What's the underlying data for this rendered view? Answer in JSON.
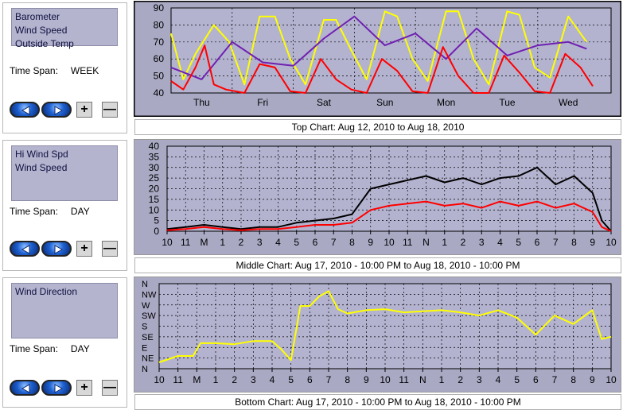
{
  "panels": [
    {
      "series": [
        "Barometer",
        "Wind Speed",
        "Outside Temp"
      ],
      "timespan_label": "Time Span:",
      "timespan_value": "WEEK"
    },
    {
      "series": [
        "Hi Wind Spd",
        "Wind Speed"
      ],
      "timespan_label": "Time Span:",
      "timespan_value": "DAY"
    },
    {
      "series": [
        "Wind Direction"
      ],
      "timespan_label": "Time Span:",
      "timespan_value": "DAY"
    }
  ],
  "controls": {
    "plus": "+",
    "minus": "—"
  },
  "captions": {
    "top": "Top Chart:  Aug 12, 2010  to  Aug 18, 2010",
    "middle": "Middle Chart:  Aug 17, 2010 - 10:00 PM  to  Aug 18, 2010 - 10:00 PM",
    "bottom": "Bottom Chart:  Aug 17, 2010 - 10:00 PM  to  Aug 18, 2010 - 10:00 PM"
  },
  "chart_data": [
    {
      "type": "line",
      "title": "",
      "x_categories": [
        "Thu",
        "Fri",
        "Sat",
        "Sun",
        "Mon",
        "Tue",
        "Wed"
      ],
      "y_ticks": [
        "40",
        "50",
        "60",
        "70",
        "80",
        "90"
      ],
      "ylim": [
        40,
        90
      ],
      "xlim_days": [
        0,
        7.2
      ],
      "grid": true,
      "series": [
        {
          "color": "#ffff00",
          "x": [
            0,
            0.2,
            0.4,
            0.7,
            0.95,
            1.2,
            1.45,
            1.7,
            1.95,
            2.2,
            2.5,
            2.7,
            2.95,
            3.2,
            3.5,
            3.7,
            3.95,
            4.2,
            4.5,
            4.7,
            4.95,
            5.2,
            5.5,
            5.7,
            5.95,
            6.2,
            6.5,
            6.8
          ],
          "y": [
            75,
            48,
            63,
            80,
            70,
            45,
            85,
            85,
            60,
            45,
            83,
            83,
            65,
            48,
            88,
            85,
            60,
            47,
            88,
            88,
            60,
            45,
            88,
            86,
            55,
            49,
            85,
            70
          ]
        },
        {
          "color": "#7020b0",
          "x": [
            0,
            0.5,
            1.0,
            1.5,
            2.0,
            2.5,
            3.0,
            3.5,
            4.0,
            4.5,
            5.0,
            5.5,
            6.0,
            6.5,
            6.8
          ],
          "y": [
            55,
            48,
            70,
            58,
            56,
            72,
            85,
            68,
            75,
            60,
            78,
            62,
            68,
            70,
            66
          ]
        },
        {
          "color": "#ff0000",
          "x": [
            0,
            0.2,
            0.4,
            0.55,
            0.7,
            0.9,
            1.2,
            1.45,
            1.7,
            1.95,
            2.2,
            2.45,
            2.7,
            2.95,
            3.2,
            3.45,
            3.7,
            3.95,
            4.2,
            4.45,
            4.7,
            4.95,
            5.2,
            5.45,
            5.7,
            5.95,
            6.2,
            6.45,
            6.7,
            6.9
          ],
          "y": [
            47,
            42,
            55,
            68,
            45,
            42,
            40,
            57,
            55,
            41,
            40,
            60,
            48,
            42,
            40,
            60,
            53,
            41,
            40,
            67,
            50,
            40,
            40,
            62,
            52,
            41,
            40,
            63,
            55,
            44
          ]
        }
      ]
    },
    {
      "type": "line",
      "title": "",
      "x_ticks": [
        "10",
        "11",
        "M",
        "1",
        "2",
        "3",
        "4",
        "5",
        "6",
        "7",
        "8",
        "9",
        "10",
        "11",
        "N",
        "1",
        "2",
        "3",
        "4",
        "5",
        "6",
        "7",
        "8",
        "9",
        "10"
      ],
      "y_ticks": [
        "0",
        "5",
        "10",
        "15",
        "20",
        "25",
        "30",
        "35",
        "40"
      ],
      "ylim": [
        0,
        40
      ],
      "xlim": [
        0,
        24
      ],
      "grid": true,
      "series": [
        {
          "name": "Hi Wind Spd",
          "color": "#000000",
          "x": [
            0,
            1,
            2,
            3,
            4,
            5,
            6,
            7,
            8,
            9,
            10,
            11,
            12,
            13,
            14,
            15,
            16,
            17,
            18,
            19,
            20,
            21,
            22,
            23,
            23.5,
            24
          ],
          "y": [
            1,
            2,
            3,
            2,
            1,
            2,
            2,
            4,
            5,
            6,
            8,
            20,
            22,
            24,
            26,
            23,
            25,
            22,
            25,
            26,
            30,
            22,
            26,
            18,
            5,
            0
          ]
        },
        {
          "name": "Wind Speed",
          "color": "#ff0000",
          "x": [
            0,
            1,
            2,
            3,
            4,
            5,
            6,
            7,
            8,
            9,
            10,
            11,
            12,
            13,
            14,
            15,
            16,
            17,
            18,
            19,
            20,
            21,
            22,
            23,
            23.5,
            24
          ],
          "y": [
            0.5,
            1,
            2,
            1,
            0.5,
            1,
            1,
            2,
            3,
            3,
            4,
            10,
            12,
            13,
            14,
            12,
            13,
            11,
            14,
            12,
            14,
            11,
            13,
            9,
            2,
            0
          ]
        }
      ]
    },
    {
      "type": "line",
      "title": "",
      "x_ticks": [
        "10",
        "11",
        "M",
        "1",
        "2",
        "3",
        "4",
        "5",
        "6",
        "7",
        "8",
        "9",
        "10",
        "11",
        "N",
        "1",
        "2",
        "3",
        "4",
        "5",
        "6",
        "7",
        "8",
        "9",
        "10"
      ],
      "y_ticks": [
        "N",
        "NE",
        "E",
        "SE",
        "S",
        "SW",
        "W",
        "NW",
        "N"
      ],
      "ylim": [
        0,
        8
      ],
      "xlim": [
        0,
        24
      ],
      "grid": true,
      "series": [
        {
          "name": "Wind Direction",
          "color": "#ffff00",
          "x": [
            0,
            1,
            1.8,
            2.2,
            3,
            4,
            5,
            6,
            6.5,
            7,
            7.5,
            8,
            8.5,
            9,
            9.5,
            10,
            11,
            12,
            13,
            14,
            15,
            16,
            17,
            18,
            19,
            20,
            21,
            22,
            23,
            23.5,
            24
          ],
          "y": [
            0.6,
            1.2,
            1.2,
            2.4,
            2.4,
            2.3,
            2.6,
            2.6,
            1.8,
            0.8,
            5.9,
            5.9,
            6.8,
            7.3,
            5.6,
            5.2,
            5.5,
            5.6,
            5.3,
            5.4,
            5.5,
            5.3,
            5.0,
            5.5,
            4.8,
            3.2,
            5.0,
            4.2,
            5.5,
            2.8,
            3.0
          ]
        }
      ]
    }
  ]
}
